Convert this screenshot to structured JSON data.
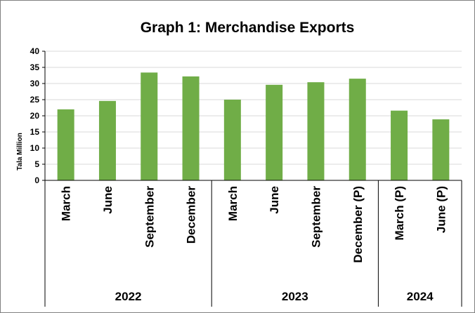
{
  "chart_data": {
    "type": "bar",
    "title": "Graph 1: Merchandise Exports",
    "ylabel": "Tala Million",
    "xlabel": "",
    "ylim": [
      0,
      40
    ],
    "yticks": [
      "0",
      "5",
      "10",
      "15",
      "20",
      "25",
      "30",
      "35",
      "40"
    ],
    "grid": true,
    "categories": [
      "March",
      "June",
      "September",
      "December",
      "March",
      "June",
      "September",
      "December (P)",
      "March (P)",
      "June (P)"
    ],
    "values": [
      22.0,
      24.6,
      33.4,
      32.2,
      25.0,
      29.6,
      30.4,
      31.5,
      21.6,
      18.9
    ],
    "groups": [
      {
        "label": "2022",
        "count": 4
      },
      {
        "label": "2023",
        "count": 4
      },
      {
        "label": "2024",
        "count": 2
      }
    ],
    "colors": {
      "bar": "#70AD47",
      "grid": "#D9D9D9",
      "axis": "#000000",
      "border": "#808080"
    }
  }
}
